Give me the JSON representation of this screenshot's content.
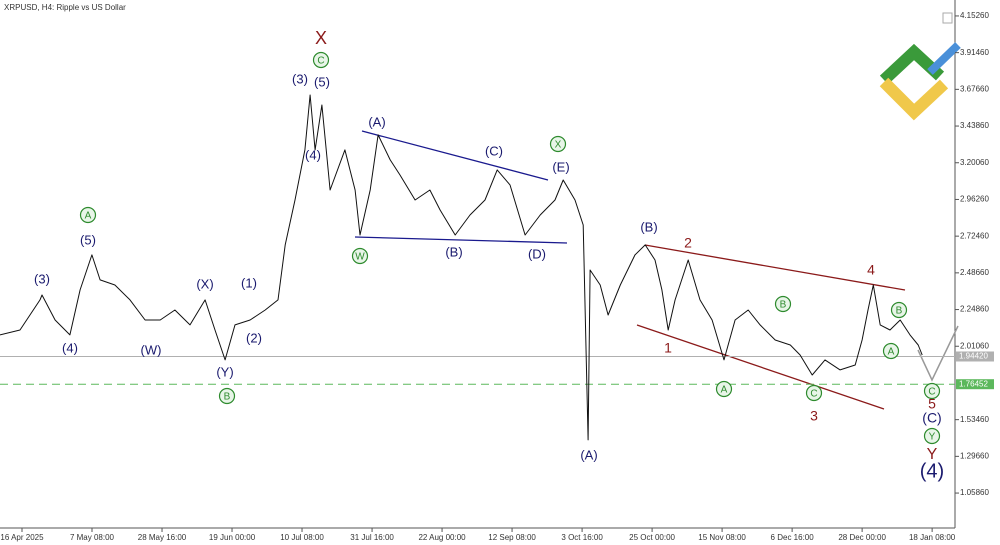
{
  "chart_data": {
    "type": "line",
    "title": "XRPUSD, H4:  Ripple vs US Dollar",
    "xlim": [
      -6.7,
      284.3
    ],
    "ylim": [
      0.832,
      4.256
    ],
    "xticks": [
      {
        "value": 0,
        "label": "16 Apr 2025"
      },
      {
        "value": 21.33,
        "label": "7 May 08:00"
      },
      {
        "value": 42.67,
        "label": "28 May 16:00"
      },
      {
        "value": 64,
        "label": "19 Jun 00:00"
      },
      {
        "value": 85.33,
        "label": "10 Jul 08:00"
      },
      {
        "value": 106.67,
        "label": "31 Jul 16:00"
      },
      {
        "value": 128,
        "label": "22 Aug 00:00"
      },
      {
        "value": 149.33,
        "label": "12 Sep 08:00"
      },
      {
        "value": 170.67,
        "label": "3 Oct 16:00"
      },
      {
        "value": 192,
        "label": "25 Oct 00:00"
      },
      {
        "value": 213.33,
        "label": "15 Nov 08:00"
      },
      {
        "value": 234.67,
        "label": "6 Dec 16:00"
      },
      {
        "value": 256,
        "label": "28 Dec 00:00"
      },
      {
        "value": 277.33,
        "label": "18 Jan 08:00"
      }
    ],
    "yticks": [
      {
        "value": 4.1526,
        "label": "4.15260"
      },
      {
        "value": 3.9146,
        "label": "3.91460"
      },
      {
        "value": 3.6766,
        "label": "3.67660"
      },
      {
        "value": 3.4386,
        "label": "3.43860"
      },
      {
        "value": 3.2006,
        "label": "3.20060"
      },
      {
        "value": 2.9626,
        "label": "2.96260"
      },
      {
        "value": 2.7246,
        "label": "2.72460"
      },
      {
        "value": 2.4866,
        "label": "2.48660"
      },
      {
        "value": 2.2486,
        "label": "2.24860"
      },
      {
        "value": 2.0106,
        "label": "2.01060"
      },
      {
        "value": 1.5346,
        "label": "1.53460"
      },
      {
        "value": 1.2966,
        "label": "1.29660"
      },
      {
        "value": 1.0586,
        "label": "1.05860"
      }
    ],
    "x": [
      -6.7,
      -0.6,
      5.5,
      6.1,
      10.1,
      14.6,
      17.7,
      21.3,
      23.8,
      28.3,
      32.9,
      37.5,
      42.1,
      46.6,
      51.2,
      55.8,
      58.8,
      61.9,
      64.9,
      69.5,
      74.1,
      78.0,
      80.2,
      83.2,
      86.2,
      87.8,
      89.3,
      91.4,
      93.9,
      98.4,
      101.5,
      103.0,
      106.1,
      108.5,
      112.2,
      115.2,
      119.8,
      124.3,
      127.4,
      132.0,
      136.5,
      141.1,
      144.8,
      148.7,
      153.3,
      157.9,
      162.4,
      164.9,
      168.5,
      171.0,
      172.5,
      173.1,
      176.2,
      178.6,
      182.3,
      186.8,
      189.9,
      192.9,
      195.0,
      196.9,
      199.0,
      203.0,
      206.6,
      210.3,
      213.9,
      217.3,
      221.3,
      224.9,
      229.5,
      234.1,
      237.1,
      240.8,
      244.7,
      249.3,
      253.9,
      256.0,
      257.8,
      259.4,
      261.5,
      264.5,
      267.6,
      270.6,
      273.1,
      274.3
    ],
    "series": [
      {
        "color": "#111111",
        "values": [
          2.084,
          2.116,
          2.311,
          2.343,
          2.181,
          2.084,
          2.376,
          2.603,
          2.441,
          2.408,
          2.311,
          2.181,
          2.181,
          2.246,
          2.149,
          2.311,
          2.116,
          1.922,
          2.149,
          2.181,
          2.246,
          2.311,
          2.668,
          2.959,
          3.284,
          3.64,
          3.284,
          3.575,
          3.024,
          3.284,
          3.024,
          2.732,
          3.024,
          3.381,
          3.219,
          3.121,
          2.959,
          3.024,
          2.894,
          2.732,
          2.862,
          2.959,
          3.154,
          3.057,
          2.732,
          2.862,
          2.959,
          3.089,
          2.959,
          2.797,
          1.403,
          2.505,
          2.408,
          2.213,
          2.408,
          2.603,
          2.668,
          2.57,
          2.376,
          2.116,
          2.311,
          2.57,
          2.311,
          2.181,
          1.922,
          2.181,
          2.246,
          2.149,
          2.051,
          2.019,
          1.954,
          1.824,
          1.922,
          1.857,
          1.889,
          2.051,
          2.246,
          2.408,
          2.149,
          2.116,
          2.181,
          2.084,
          2.019,
          1.954
        ]
      }
    ],
    "price_lines": [
      {
        "value": 1.9442,
        "label": "1.94420",
        "color": "#b0b0b0",
        "dashed": false
      },
      {
        "value": 1.76452,
        "label": "1.76452",
        "color": "#5cb85c",
        "dashed": true
      }
    ],
    "annotations": [
      {
        "text": "X",
        "color": "#8b1a1a",
        "circled": false
      },
      {
        "text": "C",
        "color": "#2e8b2e",
        "circled": true
      },
      {
        "text": "(3)",
        "color": "#1a1a6e",
        "circled": false
      },
      {
        "text": "(5)",
        "color": "#1a1a6e",
        "circled": false
      },
      {
        "text": "(4)",
        "color": "#1a1a6e",
        "circled": false
      },
      {
        "text": "(A)",
        "color": "#1a1a6e",
        "circled": false
      },
      {
        "text": "(C)",
        "color": "#1a1a6e",
        "circled": false
      },
      {
        "text": "X",
        "color": "#2e8b2e",
        "circled": true
      },
      {
        "text": "(E)",
        "color": "#1a1a6e",
        "circled": false
      },
      {
        "text": "W",
        "color": "#2e8b2e",
        "circled": true
      },
      {
        "text": "(B)",
        "color": "#1a1a6e",
        "circled": false
      },
      {
        "text": "(D)",
        "color": "#1a1a6e",
        "circled": false
      },
      {
        "text": "(B)",
        "color": "#1a1a6e",
        "circled": false
      },
      {
        "text": "2",
        "color": "#8b1a1a",
        "circled": false
      },
      {
        "text": "1",
        "color": "#8b1a1a",
        "circled": false
      },
      {
        "text": "4",
        "color": "#8b1a1a",
        "circled": false
      },
      {
        "text": "B",
        "color": "#2e8b2e",
        "circled": true
      },
      {
        "text": "B",
        "color": "#2e8b2e",
        "circled": true
      },
      {
        "text": "A",
        "color": "#2e8b2e",
        "circled": true
      },
      {
        "text": "A",
        "color": "#2e8b2e",
        "circled": true
      },
      {
        "text": "C",
        "color": "#2e8b2e",
        "circled": true
      },
      {
        "text": "3",
        "color": "#8b1a1a",
        "circled": false
      },
      {
        "text": "(A)",
        "color": "#1a1a6e",
        "circled": false
      },
      {
        "text": "C",
        "color": "#2e8b2e",
        "circled": true
      },
      {
        "text": "5",
        "color": "#8b1a1a",
        "circled": false
      },
      {
        "text": "(C)",
        "color": "#1a1a6e",
        "circled": false
      },
      {
        "text": "Y",
        "color": "#2e8b2e",
        "circled": true
      },
      {
        "text": "Y",
        "color": "#8b1a1a",
        "circled": false
      },
      {
        "text": "(4)",
        "color": "#1a1a6e",
        "circled": false
      },
      {
        "text": "(3)",
        "color": "#1a1a6e",
        "circled": false
      },
      {
        "text": "(4)",
        "color": "#1a1a6e",
        "circled": false
      },
      {
        "text": "A",
        "color": "#2e8b2e",
        "circled": true
      },
      {
        "text": "(5)",
        "color": "#1a1a6e",
        "circled": false
      },
      {
        "text": "(W)",
        "color": "#1a1a6e",
        "circled": false
      },
      {
        "text": "(X)",
        "color": "#1a1a6e",
        "circled": false
      },
      {
        "text": "(1)",
        "color": "#1a1a6e",
        "circled": false
      },
      {
        "text": "(2)",
        "color": "#1a1a6e",
        "circled": false
      },
      {
        "text": "(Y)",
        "color": "#1a1a6e",
        "circled": false
      },
      {
        "text": "B",
        "color": "#2e8b2e",
        "circled": true
      }
    ]
  }
}
